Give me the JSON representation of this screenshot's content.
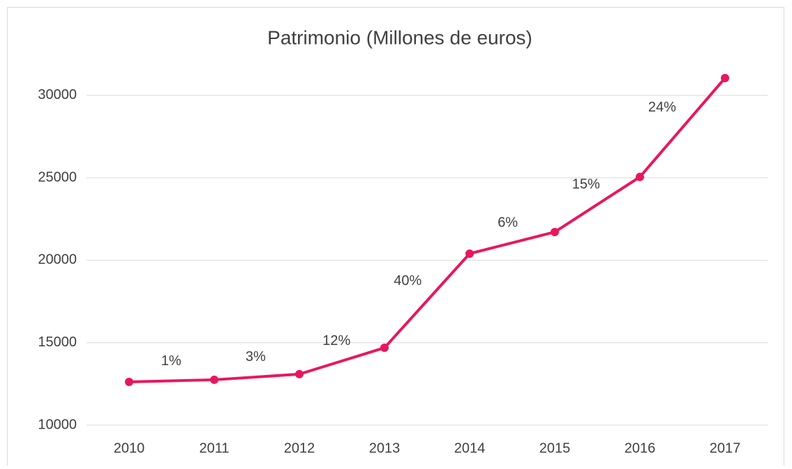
{
  "chart_data": {
    "type": "line",
    "title": "Patrimonio (Millones de euros)",
    "categories": [
      "2010",
      "2011",
      "2012",
      "2013",
      "2014",
      "2015",
      "2016",
      "2017"
    ],
    "series": [
      {
        "name": "Patrimonio",
        "color": "#e8175d",
        "values": [
          12620,
          12750,
          13090,
          14690,
          20400,
          21710,
          25050,
          31050
        ]
      }
    ],
    "annotations": [
      "1%",
      "3%",
      "12%",
      "40%",
      "6%",
      "15%",
      "24%"
    ],
    "ylim": [
      10000,
      32000
    ],
    "yticks": [
      10000,
      15000,
      20000,
      25000,
      30000
    ],
    "grid": true,
    "legend": false
  }
}
